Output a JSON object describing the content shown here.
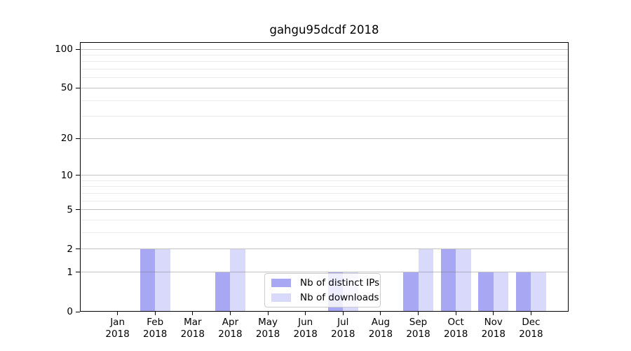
{
  "title": "gahgu95dcdf 2018",
  "colors": {
    "bar_distinct_ips": "#a7a7f4",
    "bar_downloads": "#d9d9fb",
    "grid_major": "#c6c6c6",
    "grid_minor": "#e9e9e9",
    "spine": "#000000",
    "legend_border": "#cccccc"
  },
  "legend": {
    "items": [
      {
        "label": "Nb of distinct IPs",
        "color": "#a7a7f4"
      },
      {
        "label": "Nb of downloads",
        "color": "#d9d9fb"
      }
    ]
  },
  "chart_data": {
    "type": "bar",
    "title": "gahgu95dcdf 2018",
    "categories": [
      "Jan 2018",
      "Feb 2018",
      "Mar 2018",
      "Apr 2018",
      "May 2018",
      "Jun 2018",
      "Jul 2018",
      "Aug 2018",
      "Sep 2018",
      "Oct 2018",
      "Nov 2018",
      "Dec 2018"
    ],
    "series": [
      {
        "name": "Nb of distinct IPs",
        "color": "#a7a7f4",
        "values": [
          0,
          2,
          0,
          1,
          0,
          0,
          1,
          0,
          1,
          2,
          1,
          1
        ]
      },
      {
        "name": "Nb of downloads",
        "color": "#d9d9fb",
        "values": [
          0,
          2,
          0,
          2,
          0,
          0,
          1,
          0,
          2,
          2,
          1,
          1
        ]
      }
    ],
    "xlabel": "",
    "ylabel": "",
    "yscale": "log1p",
    "ylim": [
      0,
      113
    ],
    "y_tick_values": [
      0,
      1,
      2,
      5,
      10,
      20,
      50,
      100
    ],
    "y_tick_labels": [
      "0",
      "1",
      "2",
      "5",
      "10",
      "20",
      "50",
      "100"
    ],
    "y_minor_gridlines": [
      3,
      4,
      6,
      7,
      8,
      9,
      30,
      40,
      60,
      70,
      80,
      90
    ],
    "grid": true,
    "legend_position": "lower center",
    "bar_group_width_ratio": 0.8
  }
}
